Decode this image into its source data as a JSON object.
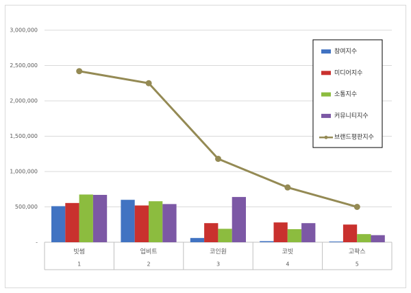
{
  "chart_data": {
    "type": "bar_line",
    "categories": [
      "빗썸",
      "업비트",
      "코인원",
      "코빗",
      "고팍스"
    ],
    "category_numbers": [
      "1",
      "2",
      "3",
      "4",
      "5"
    ],
    "series": [
      {
        "name": "참여지수",
        "color": "#4173c2",
        "type": "bar",
        "values": [
          510000,
          600000,
          60000,
          15000,
          10000
        ]
      },
      {
        "name": "미디어지수",
        "color": "#c9312e",
        "type": "bar",
        "values": [
          555000,
          520000,
          270000,
          280000,
          250000
        ]
      },
      {
        "name": "소통지수",
        "color": "#8cbc3f",
        "type": "bar",
        "values": [
          675000,
          580000,
          190000,
          185000,
          115000
        ]
      },
      {
        "name": "커뮤니티지수",
        "color": "#7c58a5",
        "type": "bar",
        "values": [
          670000,
          540000,
          640000,
          270000,
          100000
        ]
      },
      {
        "name": "브랜드평판지수",
        "color": "#948a54",
        "type": "line",
        "values": [
          2420000,
          2250000,
          1180000,
          775000,
          500000
        ]
      }
    ],
    "ylim": [
      0,
      3000000
    ],
    "yticks": [
      {
        "value": 0,
        "label": "-"
      },
      {
        "value": 500000,
        "label": "500,000"
      },
      {
        "value": 1000000,
        "label": "1,000,000"
      },
      {
        "value": 1500000,
        "label": "1,500,000"
      },
      {
        "value": 2000000,
        "label": "2,000,000"
      },
      {
        "value": 2500000,
        "label": "2,500,000"
      },
      {
        "value": 3000000,
        "label": "3,000,000"
      }
    ],
    "grid": true,
    "legend": "right"
  }
}
